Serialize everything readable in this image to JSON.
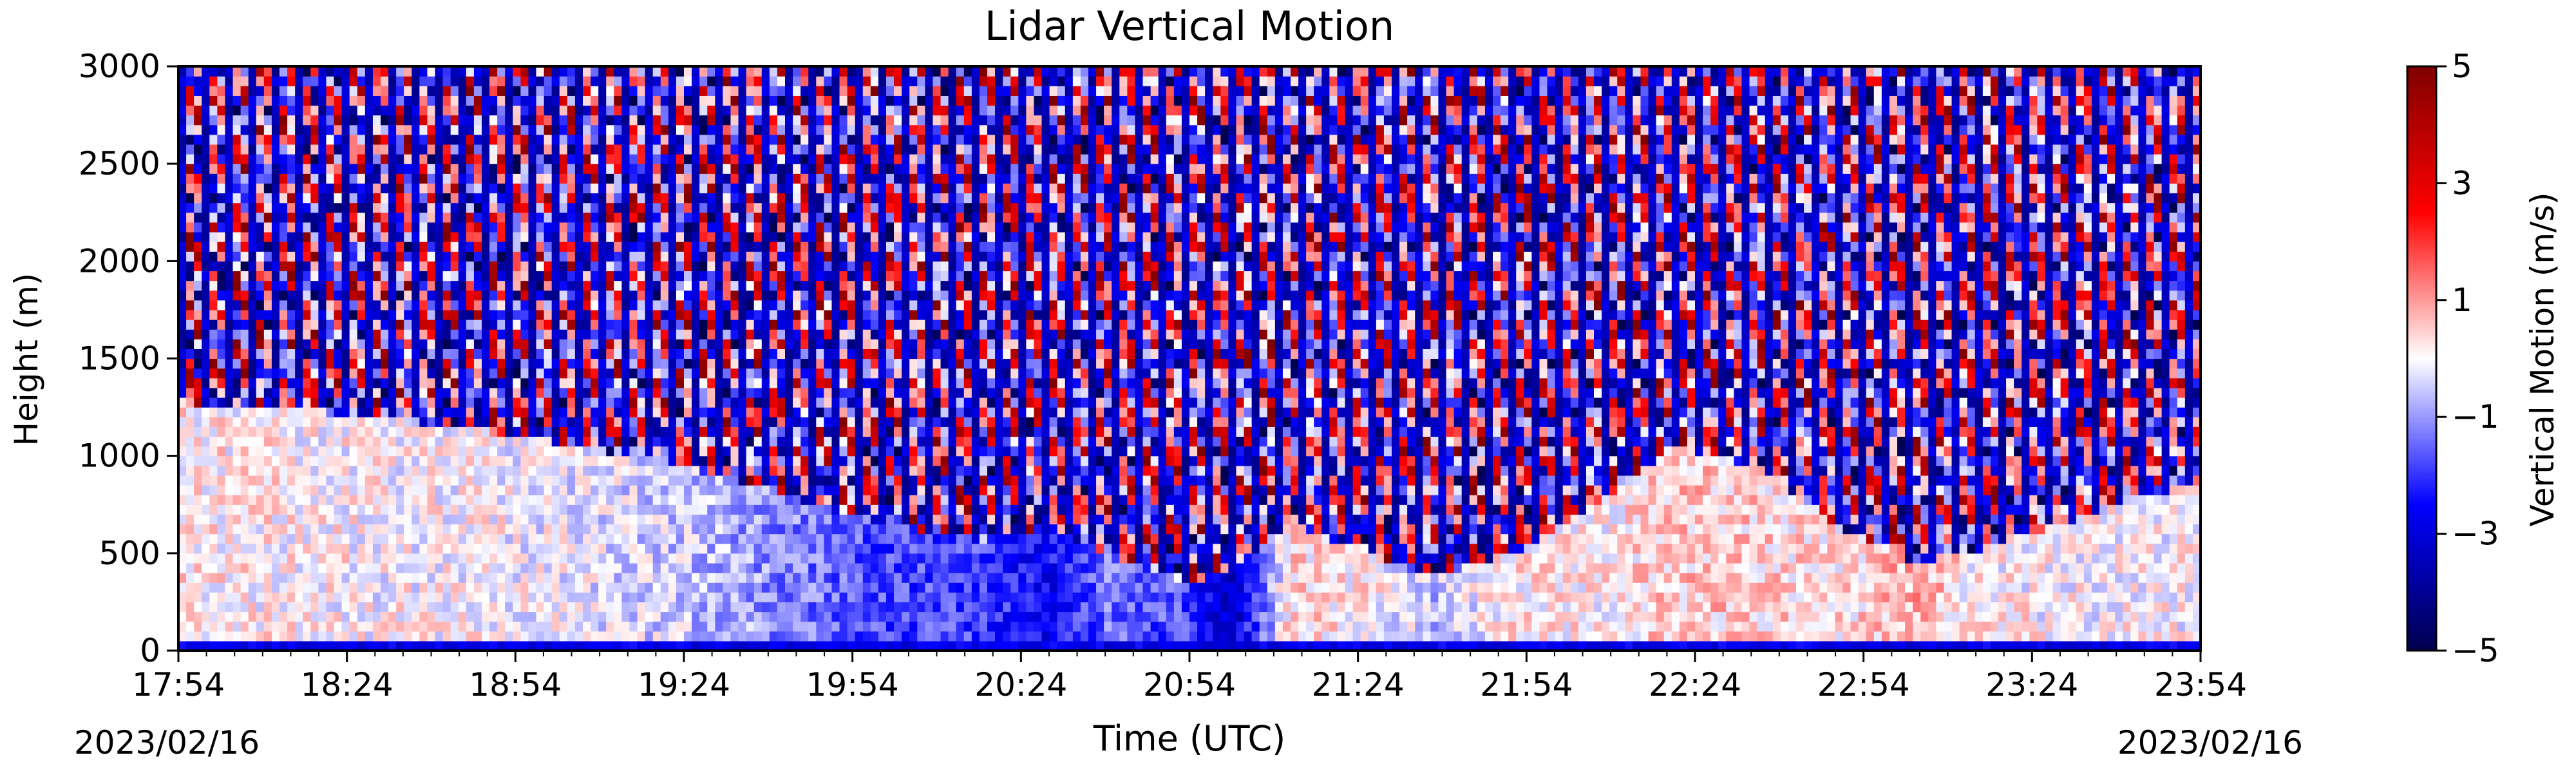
{
  "chart_data": {
    "type": "heatmap",
    "title": "Lidar Vertical Motion",
    "xlabel": "Time (UTC)",
    "ylabel": "Height (m)",
    "x_start_date_label": "2023/02/16",
    "x_end_date_label": "2023/02/16",
    "x_ticks": [
      "17:54",
      "18:24",
      "18:54",
      "19:24",
      "19:54",
      "20:24",
      "20:54",
      "21:24",
      "21:54",
      "22:24",
      "22:54",
      "23:24",
      "23:54"
    ],
    "xlim": [
      "17:54",
      "23:54"
    ],
    "y_ticks": [
      0,
      500,
      1000,
      1500,
      2000,
      2500,
      3000
    ],
    "ylim": [
      0,
      3000
    ],
    "colorbar": {
      "label": "Vertical Motion (m/s)",
      "ticks": [
        5,
        3,
        1,
        -1,
        -3,
        -5
      ],
      "tick_labels": [
        "5",
        "3",
        "1",
        "−1",
        "−3",
        "−5"
      ],
      "range": [
        -5,
        5
      ],
      "colormap": "seismic"
    },
    "grid": false,
    "colors": {
      "negative_extreme": "#00004c",
      "negative": "#0000ff",
      "zero": "#ffffff",
      "positive": "#ff0000",
      "positive_extreme": "#800000"
    }
  }
}
